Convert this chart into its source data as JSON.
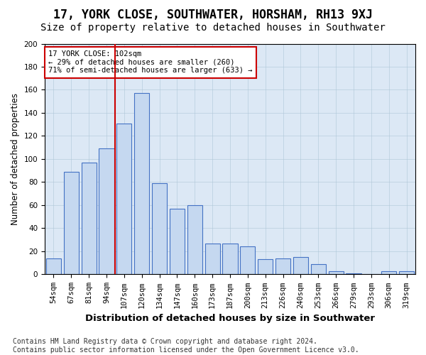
{
  "title": "17, YORK CLOSE, SOUTHWATER, HORSHAM, RH13 9XJ",
  "subtitle": "Size of property relative to detached houses in Southwater",
  "xlabel": "Distribution of detached houses by size in Southwater",
  "ylabel": "Number of detached properties",
  "categories": [
    "54sqm",
    "67sqm",
    "81sqm",
    "94sqm",
    "107sqm",
    "120sqm",
    "134sqm",
    "147sqm",
    "160sqm",
    "173sqm",
    "187sqm",
    "200sqm",
    "213sqm",
    "226sqm",
    "240sqm",
    "253sqm",
    "266sqm",
    "279sqm",
    "293sqm",
    "306sqm",
    "319sqm"
  ],
  "values": [
    14,
    89,
    97,
    109,
    131,
    157,
    79,
    57,
    60,
    27,
    27,
    24,
    13,
    14,
    15,
    9,
    3,
    1,
    0,
    3,
    3
  ],
  "bar_color": "#c5d8f0",
  "bar_edge_color": "#4472c4",
  "vline_pos": 3.5,
  "vline_color": "#cc0000",
  "annotation_line1": "17 YORK CLOSE: 102sqm",
  "annotation_line2": "← 29% of detached houses are smaller (260)",
  "annotation_line3": "71% of semi-detached houses are larger (633) →",
  "annotation_box_color": "#ffffff",
  "annotation_box_edge": "#cc0000",
  "ylim": [
    0,
    200
  ],
  "yticks": [
    0,
    20,
    40,
    60,
    80,
    100,
    120,
    140,
    160,
    180,
    200
  ],
  "footer_line1": "Contains HM Land Registry data © Crown copyright and database right 2024.",
  "footer_line2": "Contains public sector information licensed under the Open Government Licence v3.0.",
  "bg_color": "#dce8f5",
  "title_fontsize": 12,
  "subtitle_fontsize": 10,
  "xlabel_fontsize": 9.5,
  "ylabel_fontsize": 8.5,
  "tick_fontsize": 7.5,
  "footer_fontsize": 7
}
